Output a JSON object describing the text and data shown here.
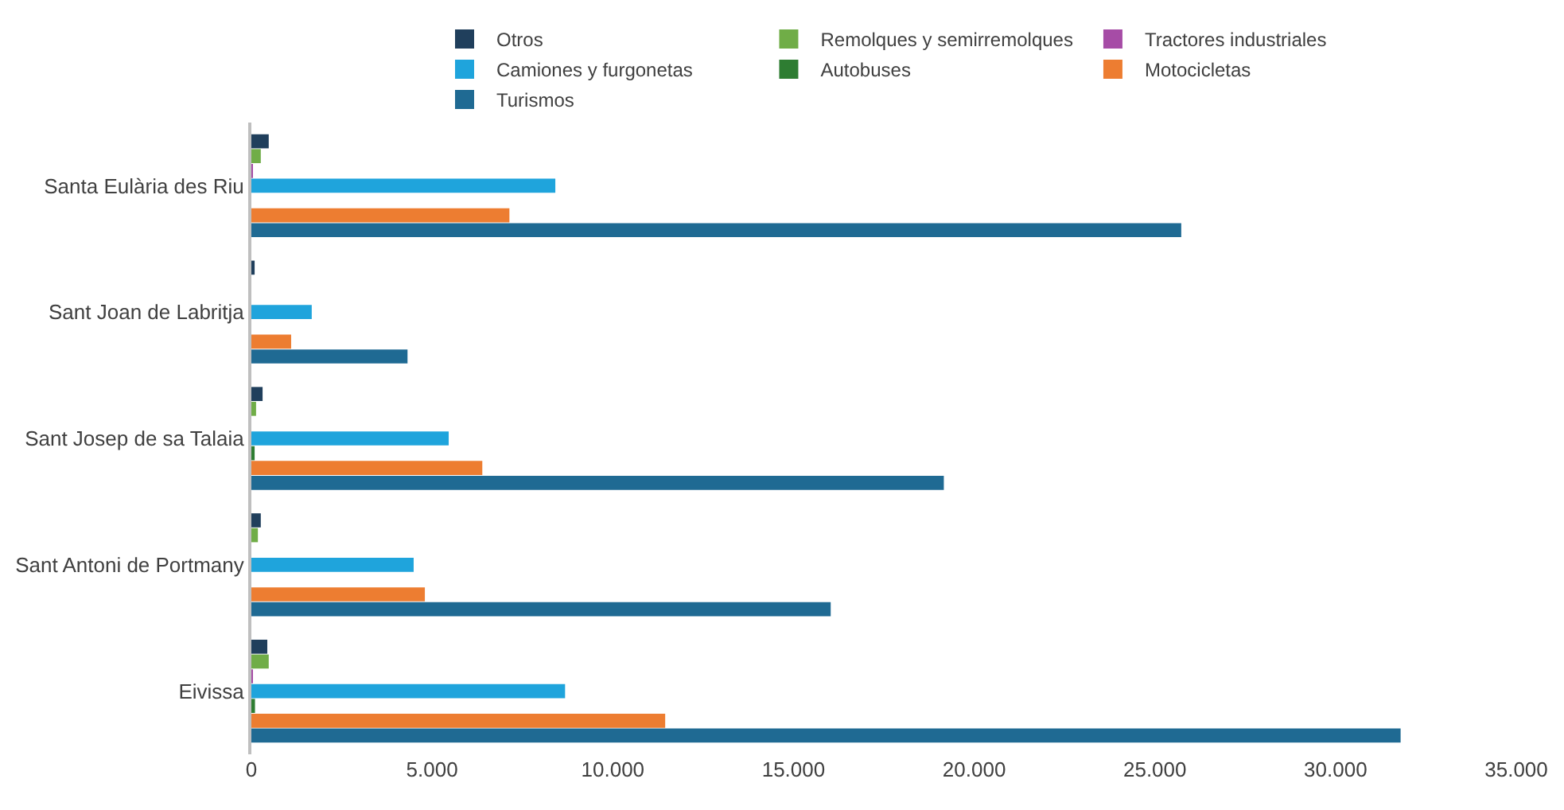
{
  "chart_data": {
    "type": "bar",
    "orientation": "horizontal",
    "categories": [
      "Santa Eulària des Riu",
      "Sant Joan de Labritja",
      "Sant Josep de sa Talaia",
      "Sant Antoni de Portmany",
      "Eivissa"
    ],
    "series": [
      {
        "name": "Otros",
        "color": "#203f5c",
        "values": [
          480,
          90,
          310,
          260,
          440
        ]
      },
      {
        "name": "Remolques y semirremolques",
        "color": "#70ad47",
        "values": [
          260,
          null,
          130,
          180,
          480
        ]
      },
      {
        "name": "Tractores industriales",
        "color": "#a64ca6",
        "values": [
          40,
          null,
          null,
          null,
          40
        ]
      },
      {
        "name": "Camiones y furgonetas",
        "color": "#1fa4dc",
        "values": [
          8410,
          1670,
          5460,
          4490,
          8680
        ]
      },
      {
        "name": "Autobuses",
        "color": "#2e7d32",
        "values": [
          null,
          null,
          90,
          null,
          100
        ]
      },
      {
        "name": "Motocicletas",
        "color": "#ed7d31",
        "values": [
          7140,
          1100,
          6390,
          4800,
          11450
        ]
      },
      {
        "name": "Turismos",
        "color": "#1f6a93",
        "values": [
          25730,
          4320,
          19160,
          16030,
          31800
        ]
      }
    ],
    "xlim": [
      0,
      35000
    ],
    "xticks": [
      0,
      {
        "value": 5000,
        "label": "5.000"
      },
      {
        "value": 10000,
        "label": "10.000"
      },
      {
        "value": 15000,
        "label": "15.000"
      },
      {
        "value": 20000,
        "label": "20.000"
      },
      {
        "value": 25000,
        "label": "25.000"
      },
      {
        "value": 30000,
        "label": "30.000"
      },
      {
        "value": 35000,
        "label": "35.000"
      }
    ],
    "legend": "top"
  }
}
